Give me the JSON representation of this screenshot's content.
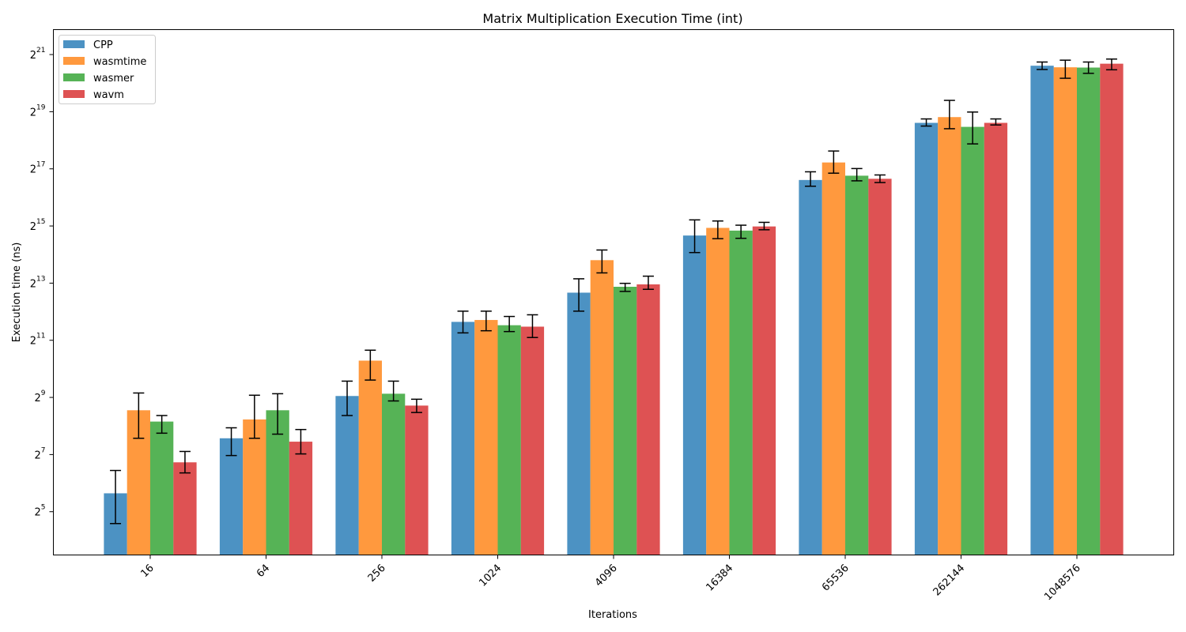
{
  "chart_data": {
    "type": "bar",
    "title": "Matrix Multiplication Execution Time (int)",
    "xlabel": "Iterations",
    "ylabel": "Execution time (ns)",
    "y_scale": "log2",
    "ylim": [
      11.2,
      3840000
    ],
    "ytick_exponents": [
      "5",
      "7",
      "9",
      "11",
      "13",
      "15",
      "17",
      "19",
      "21"
    ],
    "ytick_base": "2",
    "categories": [
      "16",
      "64",
      "256",
      "1024",
      "4096",
      "16384",
      "65536",
      "262144",
      "1048576"
    ],
    "series": [
      {
        "name": "CPP",
        "color": "#1f77b4",
        "values": [
          50,
          190,
          530,
          3200,
          6500,
          26000,
          100000,
          400000,
          1600000
        ],
        "err_low": [
          24,
          125,
          330,
          2450,
          4150,
          17200,
          86000,
          370000,
          1460000
        ],
        "err_high": [
          87,
          245,
          760,
          4150,
          9100,
          38000,
          122000,
          440000,
          1750000
        ]
      },
      {
        "name": "wasmtime",
        "color": "#ff7f0e",
        "values": [
          375,
          300,
          1250,
          3350,
          14300,
          31300,
          153000,
          460000,
          1540000
        ],
        "err_low": [
          190,
          190,
          780,
          2580,
          10500,
          24100,
          118000,
          347000,
          1180000
        ],
        "err_high": [
          570,
          540,
          1610,
          4150,
          18300,
          37000,
          202000,
          690000,
          1830000
        ]
      },
      {
        "name": "wasmer",
        "color": "#2ca02c",
        "values": [
          285,
          375,
          560,
          2950,
          7500,
          29300,
          111000,
          363000,
          1530000
        ],
        "err_low": [
          215,
          210,
          470,
          2530,
          6700,
          24300,
          98000,
          240000,
          1330000
        ],
        "err_high": [
          330,
          560,
          760,
          3650,
          8150,
          33400,
          132000,
          520000,
          1750000
        ]
      },
      {
        "name": "wavm",
        "color": "#d62728",
        "values": [
          106,
          175,
          420,
          2850,
          7950,
          32400,
          103000,
          400000,
          1680000
        ],
        "err_low": [
          82,
          130,
          355,
          2190,
          7050,
          29900,
          94000,
          380000,
          1450000
        ],
        "err_high": [
          138,
          235,
          490,
          3800,
          9700,
          35800,
          113000,
          440000,
          1880000
        ]
      }
    ],
    "error_bars": true,
    "grid": false,
    "legend_position": "top-left"
  }
}
